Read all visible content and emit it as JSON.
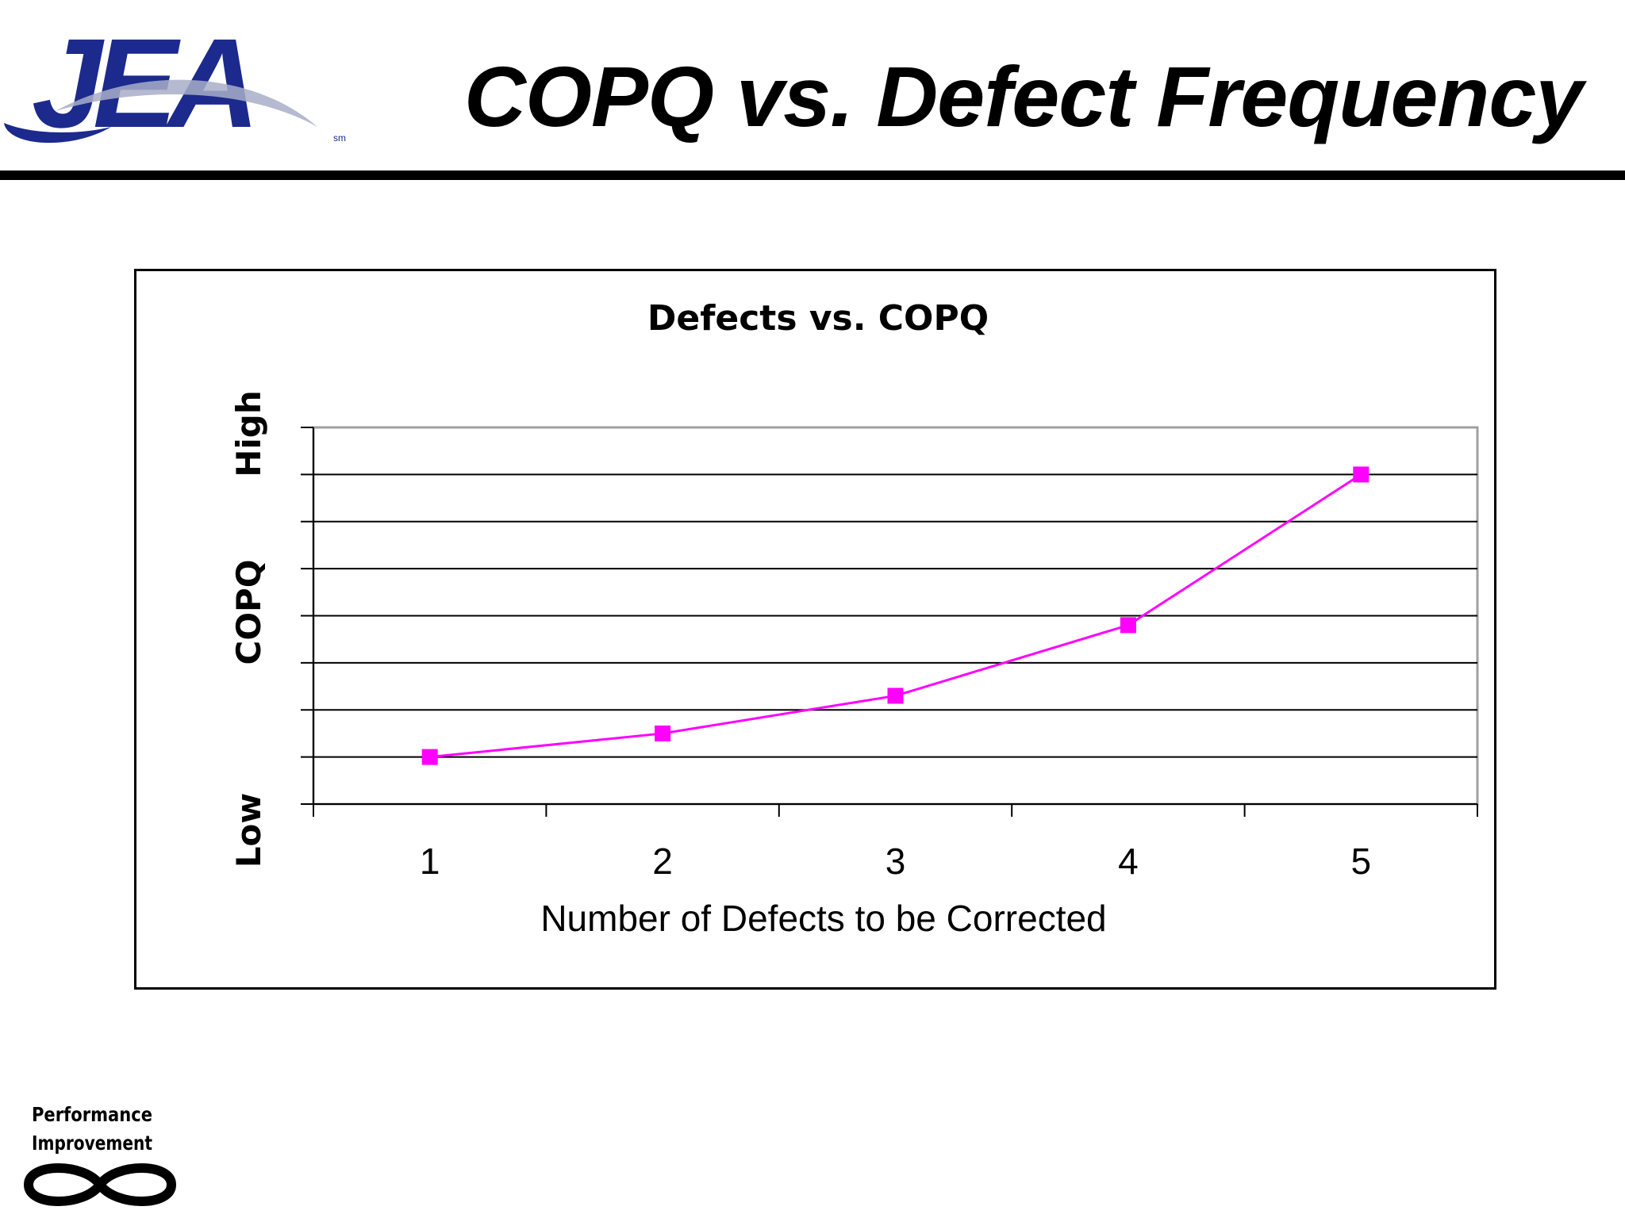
{
  "slide": {
    "title": "COPQ vs. Defect Frequency"
  },
  "logo": {
    "text": "JEA",
    "mark": "sm",
    "colors": {
      "letters": "#1b2a8c",
      "swoosh": "#a8aec8"
    }
  },
  "footer_logo": {
    "line1": "Performance",
    "line2": "Improvement",
    "symbol": "infinity-icon"
  },
  "chart_data": {
    "type": "line",
    "title": "Defects vs. COPQ",
    "xlabel": "Number of Defects to be Corrected",
    "ylabel": "COPQ",
    "y_low_label": "Low",
    "y_high_label": "High",
    "x": [
      1,
      2,
      3,
      4,
      5
    ],
    "series": [
      {
        "values": [
          1,
          1.5,
          2.3,
          3.8,
          7.0
        ],
        "color": "#ff00ff",
        "marker": "square"
      }
    ],
    "ylim": [
      0,
      8
    ],
    "grid": true,
    "colors": {
      "line": "#ff00ff",
      "grid": "#000000",
      "plot_border": "#a0a0a0"
    }
  }
}
